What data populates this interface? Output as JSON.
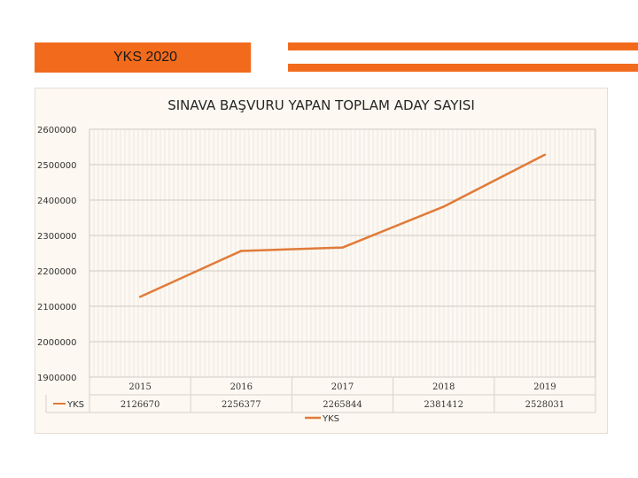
{
  "header": {
    "title": "YKS 2020"
  },
  "colors": {
    "accent": "#f26b1d",
    "series": "#e07b39"
  },
  "chart_data": {
    "type": "line",
    "title": "SINAVA BAŞVURU YAPAN TOPLAM ADAY SAYISI",
    "categories": [
      "2015",
      "2016",
      "2017",
      "2018",
      "2019"
    ],
    "series": [
      {
        "name": "YKS",
        "values": [
          2126670,
          2256377,
          2265844,
          2381412,
          2528031
        ]
      }
    ],
    "value_labels": [
      "2126670",
      "2256377",
      "2265844",
      "2381412",
      "2528031"
    ],
    "ylim": [
      1900000,
      2600000
    ],
    "yticks": [
      "1900000",
      "2000000",
      "2100000",
      "2200000",
      "2300000",
      "2400000",
      "2500000",
      "2600000"
    ],
    "grid": true,
    "legend": "bottom-center",
    "data_table": true
  }
}
